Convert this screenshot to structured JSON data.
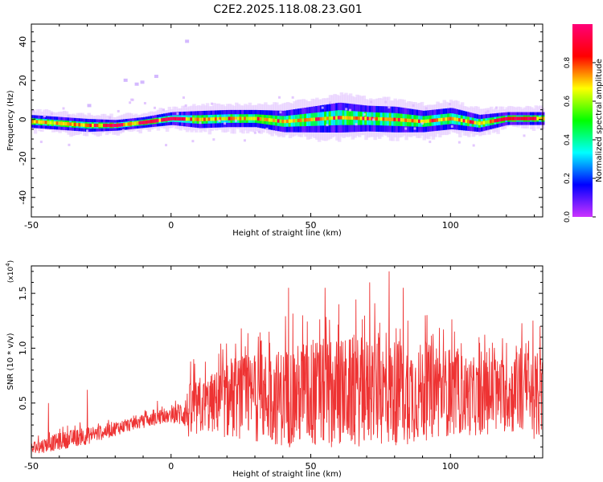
{
  "title": "C2E2.2025.118.08.23.G01",
  "chart_data": [
    {
      "type": "heatmap",
      "xlabel": "Height of straight line (km)",
      "ylabel": "Frequency (Hz)",
      "xlim": [
        -50,
        133
      ],
      "ylim": [
        -50,
        49
      ],
      "xticks": [
        -50,
        0,
        50,
        100
      ],
      "yticks": [
        -40,
        -20,
        0,
        20,
        40
      ],
      "colorbar": {
        "label": "Normalized spectral amplitude",
        "range": [
          0,
          1
        ],
        "ticks": [
          "0.0",
          "0.2",
          "0.4",
          "0.6",
          "0.8"
        ],
        "colors": [
          "#cc33ff",
          "#0000ff",
          "#00ffff",
          "#00ff00",
          "#ffff00",
          "#ff0000",
          "#ff0077"
        ]
      },
      "ridge": {
        "x": [
          -50,
          -40,
          -30,
          -20,
          -10,
          0,
          10,
          20,
          30,
          40,
          50,
          60,
          70,
          80,
          90,
          100,
          110,
          120,
          133
        ],
        "center_hz": [
          -1,
          -2,
          -3,
          -3,
          -1.5,
          0.5,
          0,
          0.5,
          0.5,
          -1,
          0,
          1,
          0.5,
          0,
          -1,
          0.5,
          -2,
          0.5,
          0.5
        ],
        "halfwidth_hz": [
          3,
          3,
          3,
          2.5,
          2.5,
          3,
          4,
          4,
          4,
          5,
          6,
          7,
          6,
          6,
          5,
          5,
          4,
          3,
          3
        ]
      }
    },
    {
      "type": "line",
      "xlabel": "Height of straight line (km)",
      "ylabel": "SNR (10 * v/v)",
      "y_multiplier": "(x10",
      "y_multiplier_exp": "4",
      "xlim": [
        -50,
        133
      ],
      "ylim": [
        0,
        1.75
      ],
      "xticks": [
        -50,
        0,
        50,
        100
      ],
      "yticks": [
        "0.5",
        "1.0",
        "1.5"
      ],
      "color": "#ee3333",
      "series": [
        {
          "x": [
            -50,
            -45,
            -40,
            -35,
            -30,
            -25,
            -20,
            -15,
            -10,
            -5,
            0,
            5,
            7,
            10,
            15,
            20,
            25,
            30,
            40,
            50,
            60,
            70,
            80,
            90,
            100,
            110,
            120,
            125,
            133
          ],
          "base": [
            0.08,
            0.12,
            0.15,
            0.18,
            0.2,
            0.23,
            0.27,
            0.3,
            0.33,
            0.36,
            0.38,
            0.42,
            0.4,
            0.45,
            0.5,
            0.52,
            0.55,
            0.55,
            0.55,
            0.58,
            0.6,
            0.6,
            0.6,
            0.6,
            0.6,
            0.55,
            0.58,
            0.6,
            0.55
          ],
          "amp": [
            0.07,
            0.07,
            0.08,
            0.08,
            0.08,
            0.07,
            0.07,
            0.06,
            0.06,
            0.06,
            0.06,
            0.15,
            0.3,
            0.25,
            0.28,
            0.35,
            0.38,
            0.4,
            0.45,
            0.5,
            0.5,
            0.5,
            0.5,
            0.45,
            0.4,
            0.35,
            0.35,
            0.4,
            0.4
          ],
          "peaks": [
            [
              -44,
              0.5
            ],
            [
              -30,
              0.62
            ],
            [
              8,
              0.9
            ],
            [
              25,
              1.18
            ],
            [
              42,
              1.55
            ],
            [
              47,
              1.3
            ],
            [
              55,
              1.55
            ],
            [
              60,
              1.4
            ],
            [
              71,
              1.6
            ],
            [
              78,
              1.7
            ],
            [
              83,
              1.55
            ],
            [
              91,
              1.3
            ],
            [
              115,
              1.05
            ],
            [
              125,
              1.0
            ],
            [
              132,
              1.2
            ],
            [
              -5,
              0.52
            ],
            [
              17,
              0.95
            ],
            [
              35,
              1.15
            ]
          ]
        }
      ]
    }
  ]
}
